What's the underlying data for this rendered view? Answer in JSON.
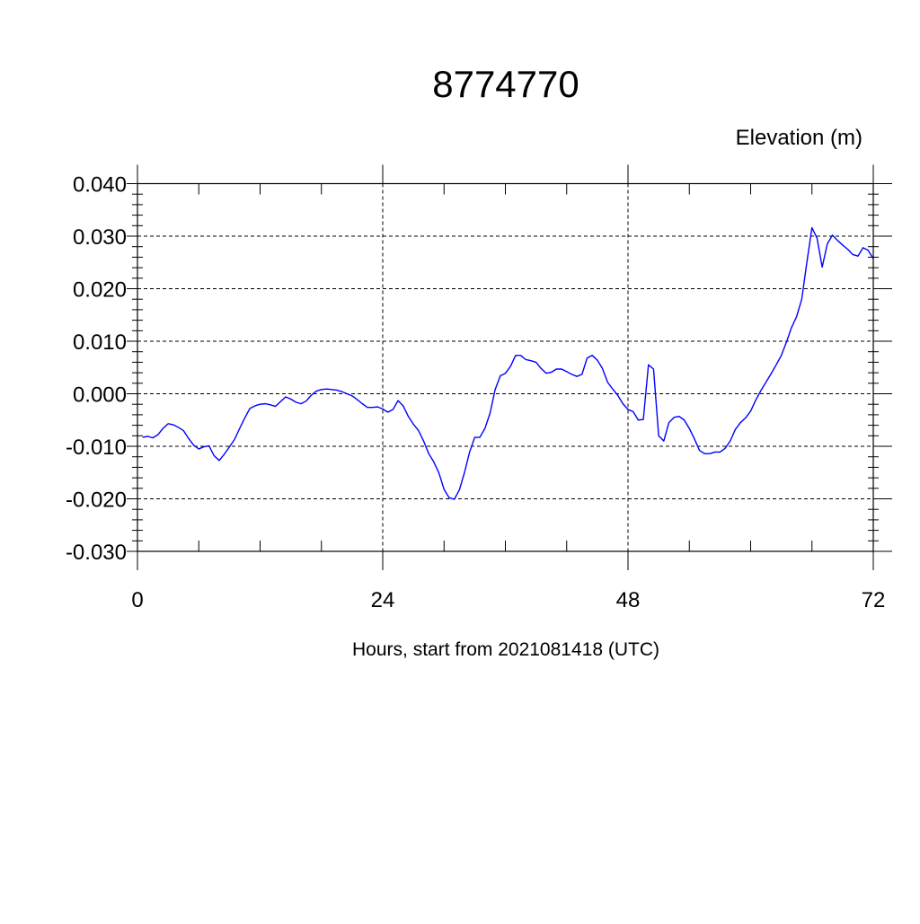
{
  "chart_data": {
    "type": "line",
    "title": "8774770",
    "ylabel": "Elevation (m)",
    "xlabel": "Hours, start from 2021081418 (UTC)",
    "xlim": [
      0,
      72
    ],
    "ylim": [
      -0.03,
      0.04
    ],
    "x_major_ticks": [
      0,
      24,
      48,
      72
    ],
    "x_tick_labels": [
      "0",
      "24",
      "48",
      "72"
    ],
    "y_major_ticks": [
      -0.03,
      -0.02,
      -0.01,
      0.0,
      0.01,
      0.02,
      0.03,
      0.04
    ],
    "y_tick_labels": [
      "-0.030",
      "-0.020",
      "-0.010",
      "0.000",
      "0.010",
      "0.020",
      "0.030",
      "0.040"
    ],
    "grid": true,
    "line_color": "#0000ff",
    "series": [
      {
        "x": [
          0.5,
          1.0,
          1.5,
          2.0,
          2.5,
          3.0,
          3.5,
          4.0,
          4.5,
          5.0,
          5.5,
          6.0,
          6.5,
          7.0,
          7.5,
          8.0,
          8.5,
          9.0,
          9.5,
          10.0,
          10.5,
          11.0,
          11.5,
          12.0,
          12.5,
          13.0,
          13.5,
          14.0,
          14.5,
          15.0,
          15.5,
          16.0,
          16.5,
          17.0,
          17.5,
          18.0,
          18.5,
          19.0,
          19.5,
          20.0,
          20.5,
          21.0,
          21.5,
          22.0,
          22.5,
          23.0,
          23.5,
          24.0,
          24.5,
          25.0,
          25.5,
          26.0,
          26.5,
          27.0,
          27.5,
          28.0,
          28.5,
          29.0,
          29.5,
          30.0,
          30.5,
          31.0,
          31.5,
          32.0,
          32.5,
          33.0,
          33.5,
          34.0,
          34.5,
          35.0,
          35.5,
          36.0,
          36.5,
          37.0,
          37.5,
          38.0,
          38.5,
          39.0,
          39.5,
          40.0,
          40.5,
          41.0,
          41.5,
          42.0,
          42.5,
          43.0,
          43.5,
          44.0,
          44.5,
          45.0,
          45.5,
          46.0,
          46.5,
          47.0,
          47.5,
          48.0,
          48.5,
          49.0,
          49.5,
          50.0,
          50.5,
          51.0,
          51.5,
          52.0,
          52.5,
          53.0,
          53.5,
          54.0,
          54.5,
          55.0,
          55.5,
          56.0,
          56.5,
          57.0,
          57.5,
          58.0,
          58.5,
          59.0,
          59.5,
          60.0,
          60.5,
          61.0,
          61.5,
          62.0,
          62.5,
          63.0,
          63.5,
          64.0,
          64.5,
          65.0,
          65.5,
          66.0,
          66.5,
          67.0,
          67.5,
          68.0,
          68.5,
          69.0,
          69.5,
          70.0,
          70.5,
          71.0,
          71.5,
          72.0
        ],
        "y": [
          -0.0083,
          -0.0081,
          -0.0084,
          -0.0078,
          -0.0066,
          -0.0057,
          -0.0059,
          -0.0064,
          -0.007,
          -0.0085,
          -0.0098,
          -0.0105,
          -0.0101,
          -0.0099,
          -0.0118,
          -0.0127,
          -0.0115,
          -0.0101,
          -0.0087,
          -0.0066,
          -0.0046,
          -0.0028,
          -0.0023,
          -0.002,
          -0.0019,
          -0.0021,
          -0.0024,
          -0.0015,
          -0.0006,
          -0.001,
          -0.0016,
          -0.0019,
          -0.0014,
          -0.0003,
          0.0005,
          0.0008,
          0.0009,
          0.0008,
          0.0007,
          0.0004,
          0.0,
          -0.0004,
          -0.0011,
          -0.0019,
          -0.0026,
          -0.0026,
          -0.0025,
          -0.0029,
          -0.0035,
          -0.003,
          -0.0013,
          -0.0023,
          -0.0043,
          -0.0058,
          -0.007,
          -0.009,
          -0.0114,
          -0.013,
          -0.0151,
          -0.0182,
          -0.0198,
          -0.0201,
          -0.0183,
          -0.015,
          -0.0111,
          -0.0083,
          -0.0083,
          -0.0066,
          -0.0037,
          0.0008,
          0.0034,
          0.0039,
          0.0052,
          0.0073,
          0.0073,
          0.0065,
          0.0063,
          0.006,
          0.0048,
          0.0039,
          0.0041,
          0.0047,
          0.0047,
          0.0042,
          0.0037,
          0.0033,
          0.0037,
          0.0068,
          0.0073,
          0.0064,
          0.0048,
          0.0022,
          0.0009,
          -0.0003,
          -0.0019,
          -0.003,
          -0.0034,
          -0.005,
          -0.0049,
          0.0055,
          0.0047,
          -0.008,
          -0.009,
          -0.0055,
          -0.0045,
          -0.0043,
          -0.005,
          -0.0066,
          -0.0086,
          -0.0108,
          -0.0114,
          -0.0114,
          -0.0111,
          -0.0111,
          -0.0104,
          -0.009,
          -0.0068,
          -0.0055,
          -0.0046,
          -0.0033,
          -0.0012,
          0.0006,
          0.0022,
          0.0038,
          0.0055,
          0.0073,
          0.0098,
          0.0126,
          0.0147,
          0.018,
          0.025,
          0.0316,
          0.0296,
          0.0241,
          0.0285,
          0.0302,
          0.0292,
          0.0283,
          0.0275,
          0.0265,
          0.0262,
          0.0278,
          0.0273,
          0.0257
        ]
      }
    ]
  }
}
